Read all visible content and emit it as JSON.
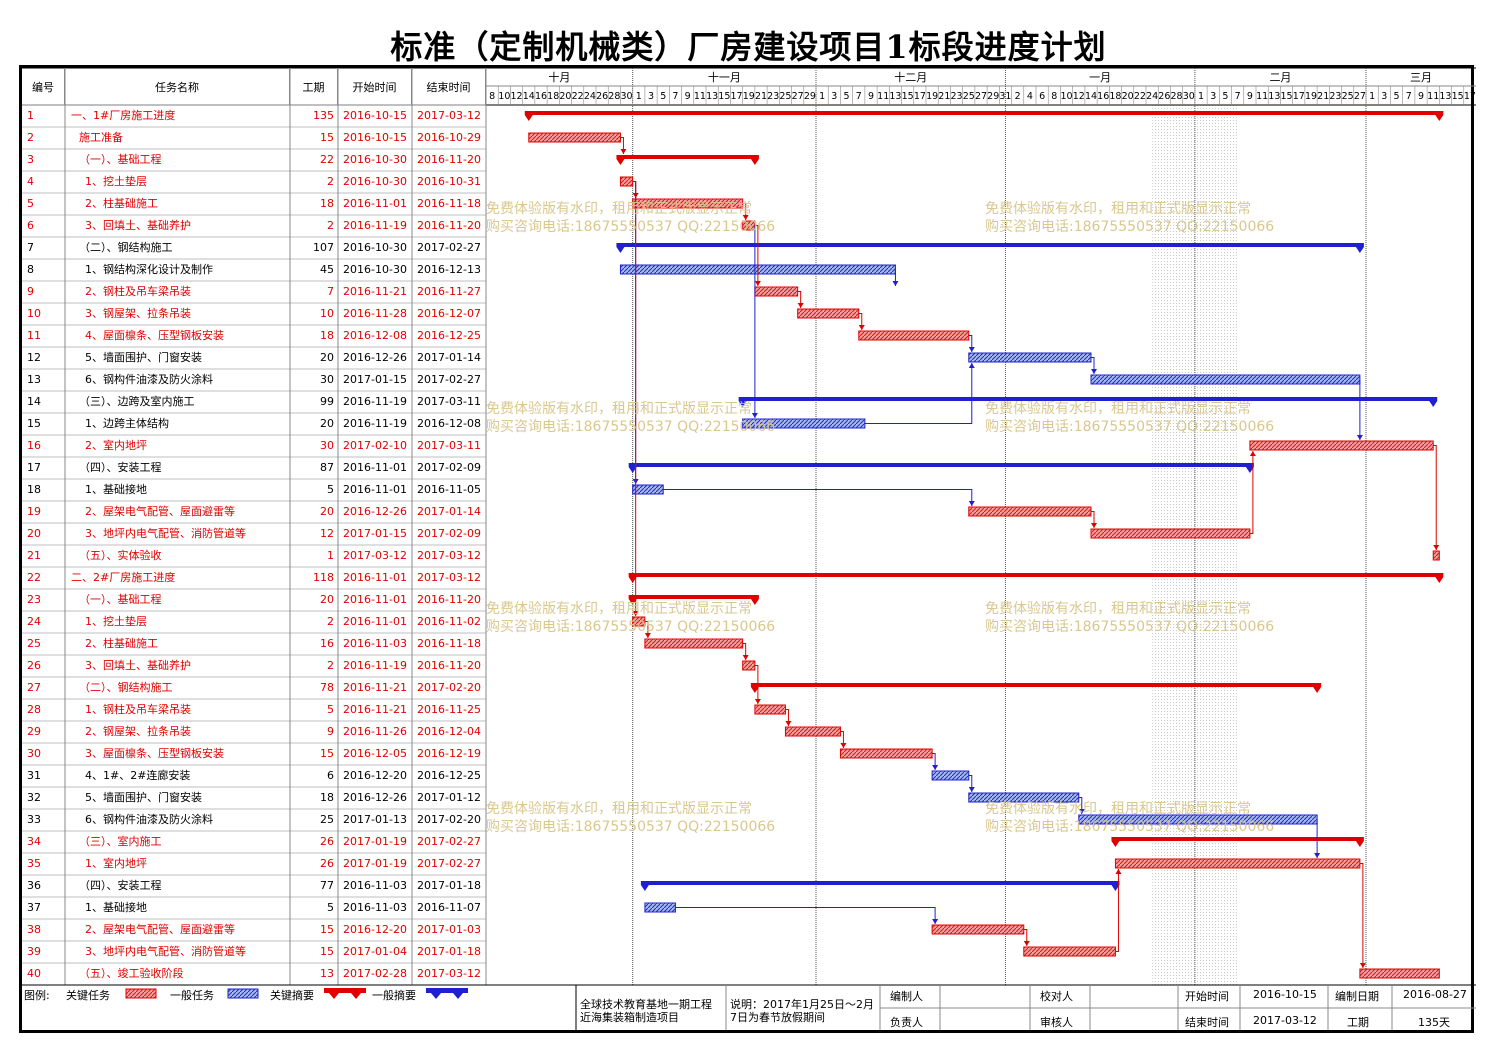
{
  "title": "标准（定制机械类）厂房建设项目1标段进度计划",
  "headers": {
    "id": "编号",
    "name": "任务名称",
    "duration": "工期",
    "start": "开始时间",
    "end": "结束时间"
  },
  "months": [
    "十月",
    "十一月",
    "十二月",
    "一月",
    "二月",
    "三月"
  ],
  "day_ticks": [
    "8",
    "10",
    "12",
    "14",
    "16",
    "18",
    "20",
    "22",
    "24",
    "26",
    "28",
    "30",
    "1",
    "3",
    "5",
    "7",
    "9",
    "11",
    "13",
    "15",
    "17",
    "19",
    "21",
    "23",
    "25",
    "27",
    "29",
    "1",
    "3",
    "5",
    "7",
    "9",
    "11",
    "13",
    "15",
    "17",
    "19",
    "21",
    "23",
    "25",
    "27",
    "29",
    "31",
    "2",
    "4",
    "6",
    "8",
    "10",
    "12",
    "14",
    "16",
    "18",
    "20",
    "22",
    "24",
    "26",
    "28",
    "30",
    "1",
    "3",
    "5",
    "7",
    "9",
    "11",
    "13",
    "15",
    "17",
    "19",
    "21",
    "23",
    "25",
    "27",
    "1",
    "3",
    "5",
    "7",
    "9",
    "11",
    "13",
    "15",
    "17"
  ],
  "watermark": {
    "line1": "免费体验版有水印，租用和正式版显示正常",
    "line2": "购买咨询电话:18675550537 QQ:22150066"
  },
  "chart_data": {
    "type": "gantt",
    "axis_start": "2016-10-08",
    "axis_end": "2017-03-18",
    "holiday": [
      "2017-01-25",
      "2017-02-07"
    ],
    "tasks": [
      {
        "id": "1",
        "name": "一、1#厂房施工进度",
        "duration": "135",
        "start": "2016-10-15",
        "end": "2017-03-12",
        "kind": "critical-summary",
        "indent": 0
      },
      {
        "id": "2",
        "name": "施工准备",
        "duration": "15",
        "start": "2016-10-15",
        "end": "2016-10-29",
        "kind": "critical",
        "indent": 1
      },
      {
        "id": "3",
        "name": "（一）、基础工程",
        "duration": "22",
        "start": "2016-10-30",
        "end": "2016-11-20",
        "kind": "critical-summary",
        "indent": 1
      },
      {
        "id": "4",
        "name": "1、挖土垫层",
        "duration": "2",
        "start": "2016-10-30",
        "end": "2016-10-31",
        "kind": "critical",
        "indent": 2
      },
      {
        "id": "5",
        "name": "2、柱基础施工",
        "duration": "18",
        "start": "2016-11-01",
        "end": "2016-11-18",
        "kind": "critical",
        "indent": 2
      },
      {
        "id": "6",
        "name": "3、回填土、基础养护",
        "duration": "2",
        "start": "2016-11-19",
        "end": "2016-11-20",
        "kind": "critical",
        "indent": 2
      },
      {
        "id": "7",
        "name": "（二）、钢结构施工",
        "duration": "107",
        "start": "2016-10-30",
        "end": "2017-02-27",
        "kind": "summary",
        "indent": 1
      },
      {
        "id": "8",
        "name": "1、钢结构深化设计及制作",
        "duration": "45",
        "start": "2016-10-30",
        "end": "2016-12-13",
        "kind": "normal",
        "indent": 2
      },
      {
        "id": "9",
        "name": "2、钢柱及吊车梁吊装",
        "duration": "7",
        "start": "2016-11-21",
        "end": "2016-11-27",
        "kind": "critical",
        "indent": 2
      },
      {
        "id": "10",
        "name": "3、钢屋架、拉条吊装",
        "duration": "10",
        "start": "2016-11-28",
        "end": "2016-12-07",
        "kind": "critical",
        "indent": 2
      },
      {
        "id": "11",
        "name": "4、屋面檩条、压型钢板安装",
        "duration": "18",
        "start": "2016-12-08",
        "end": "2016-12-25",
        "kind": "critical",
        "indent": 2
      },
      {
        "id": "12",
        "name": "5、墙面围护、门窗安装",
        "duration": "20",
        "start": "2016-12-26",
        "end": "2017-01-14",
        "kind": "normal",
        "indent": 2
      },
      {
        "id": "13",
        "name": "6、钢构件油漆及防火涂料",
        "duration": "30",
        "start": "2017-01-15",
        "end": "2017-02-27",
        "kind": "normal",
        "indent": 2
      },
      {
        "id": "14",
        "name": "（三）、边跨及室内施工",
        "duration": "99",
        "start": "2016-11-19",
        "end": "2017-03-11",
        "kind": "summary",
        "indent": 1
      },
      {
        "id": "15",
        "name": "1、边跨主体结构",
        "duration": "20",
        "start": "2016-11-19",
        "end": "2016-12-08",
        "kind": "normal",
        "indent": 2
      },
      {
        "id": "16",
        "name": "2、室内地坪",
        "duration": "30",
        "start": "2017-02-10",
        "end": "2017-03-11",
        "kind": "critical",
        "indent": 2
      },
      {
        "id": "17",
        "name": "（四）、安装工程",
        "duration": "87",
        "start": "2016-11-01",
        "end": "2017-02-09",
        "kind": "summary",
        "indent": 1
      },
      {
        "id": "18",
        "name": "1、基础接地",
        "duration": "5",
        "start": "2016-11-01",
        "end": "2016-11-05",
        "kind": "normal",
        "indent": 2
      },
      {
        "id": "19",
        "name": "2、屋架电气配管、屋面避雷等",
        "duration": "20",
        "start": "2016-12-26",
        "end": "2017-01-14",
        "kind": "critical",
        "indent": 2
      },
      {
        "id": "20",
        "name": "3、地坪内电气配管、消防管道等",
        "duration": "12",
        "start": "2017-01-15",
        "end": "2017-02-09",
        "kind": "critical",
        "indent": 2
      },
      {
        "id": "21",
        "name": "（五）、实体验收",
        "duration": "1",
        "start": "2017-03-12",
        "end": "2017-03-12",
        "kind": "critical",
        "indent": 1
      },
      {
        "id": "22",
        "name": "二、2#厂房施工进度",
        "duration": "118",
        "start": "2016-11-01",
        "end": "2017-03-12",
        "kind": "critical-summary",
        "indent": 0
      },
      {
        "id": "23",
        "name": "（一）、基础工程",
        "duration": "20",
        "start": "2016-11-01",
        "end": "2016-11-20",
        "kind": "critical-summary",
        "indent": 1
      },
      {
        "id": "24",
        "name": "1、挖土垫层",
        "duration": "2",
        "start": "2016-11-01",
        "end": "2016-11-02",
        "kind": "critical",
        "indent": 2
      },
      {
        "id": "25",
        "name": "2、柱基础施工",
        "duration": "16",
        "start": "2016-11-03",
        "end": "2016-11-18",
        "kind": "critical",
        "indent": 2
      },
      {
        "id": "26",
        "name": "3、回填土、基础养护",
        "duration": "2",
        "start": "2016-11-19",
        "end": "2016-11-20",
        "kind": "critical",
        "indent": 2
      },
      {
        "id": "27",
        "name": "（二）、钢结构施工",
        "duration": "78",
        "start": "2016-11-21",
        "end": "2017-02-20",
        "kind": "critical-summary",
        "indent": 1
      },
      {
        "id": "28",
        "name": "1、钢柱及吊车梁吊装",
        "duration": "5",
        "start": "2016-11-21",
        "end": "2016-11-25",
        "kind": "critical",
        "indent": 2
      },
      {
        "id": "29",
        "name": "2、钢屋架、拉条吊装",
        "duration": "9",
        "start": "2016-11-26",
        "end": "2016-12-04",
        "kind": "critical",
        "indent": 2
      },
      {
        "id": "30",
        "name": "3、屋面檩条、压型钢板安装",
        "duration": "15",
        "start": "2016-12-05",
        "end": "2016-12-19",
        "kind": "critical",
        "indent": 2
      },
      {
        "id": "31",
        "name": "4、1#、2#连廊安装",
        "duration": "6",
        "start": "2016-12-20",
        "end": "2016-12-25",
        "kind": "normal",
        "indent": 2
      },
      {
        "id": "32",
        "name": "5、墙面围护、门窗安装",
        "duration": "18",
        "start": "2016-12-26",
        "end": "2017-01-12",
        "kind": "normal",
        "indent": 2
      },
      {
        "id": "33",
        "name": "6、钢构件油漆及防火涂料",
        "duration": "25",
        "start": "2017-01-13",
        "end": "2017-02-20",
        "kind": "normal",
        "indent": 2
      },
      {
        "id": "34",
        "name": "（三）、室内施工",
        "duration": "26",
        "start": "2017-01-19",
        "end": "2017-02-27",
        "kind": "critical-summary",
        "indent": 1
      },
      {
        "id": "35",
        "name": "1、室内地坪",
        "duration": "26",
        "start": "2017-01-19",
        "end": "2017-02-27",
        "kind": "critical",
        "indent": 2
      },
      {
        "id": "36",
        "name": "（四）、安装工程",
        "duration": "77",
        "start": "2016-11-03",
        "end": "2017-01-18",
        "kind": "summary",
        "indent": 1
      },
      {
        "id": "37",
        "name": "1、基础接地",
        "duration": "5",
        "start": "2016-11-03",
        "end": "2016-11-07",
        "kind": "normal",
        "indent": 2
      },
      {
        "id": "38",
        "name": "2、屋架电气配管、屋面避雷等",
        "duration": "15",
        "start": "2016-12-20",
        "end": "2017-01-03",
        "kind": "critical",
        "indent": 2
      },
      {
        "id": "39",
        "name": "3、地坪内电气配管、消防管道等",
        "duration": "15",
        "start": "2017-01-04",
        "end": "2017-01-18",
        "kind": "critical",
        "indent": 2
      },
      {
        "id": "40",
        "name": "（五）、竣工验收阶段",
        "duration": "13",
        "start": "2017-02-28",
        "end": "2017-03-12",
        "kind": "critical",
        "indent": 1
      }
    ],
    "links": [
      [
        2,
        3
      ],
      [
        4,
        5
      ],
      [
        5,
        6
      ],
      [
        6,
        9
      ],
      [
        8,
        9
      ],
      [
        9,
        10
      ],
      [
        10,
        11
      ],
      [
        11,
        12
      ],
      [
        12,
        13
      ],
      [
        13,
        16
      ],
      [
        6,
        15
      ],
      [
        15,
        12
      ],
      [
        18,
        19
      ],
      [
        19,
        20
      ],
      [
        20,
        16
      ],
      [
        16,
        21
      ],
      [
        24,
        25
      ],
      [
        25,
        26
      ],
      [
        26,
        28
      ],
      [
        28,
        29
      ],
      [
        29,
        30
      ],
      [
        30,
        31
      ],
      [
        31,
        32
      ],
      [
        32,
        33
      ],
      [
        33,
        35
      ],
      [
        37,
        38
      ],
      [
        38,
        39
      ],
      [
        39,
        35
      ],
      [
        35,
        40
      ],
      [
        4,
        18
      ],
      [
        4,
        24
      ]
    ],
    "colors": {
      "critical": "#e00000",
      "normal": "#2020d0"
    }
  },
  "legend": {
    "label": "图例:",
    "critical_task": "关键任务",
    "normal_task": "一般任务",
    "critical_summary": "关键摘要",
    "normal_summary": "一般摘要"
  },
  "footer": {
    "project_line1": "全球技术教育基地一期工程",
    "project_line2": "近海集装箱制造项目",
    "note_line1": "说明：2017年1月25日～2月",
    "note_line2": "7日为春节放假期间",
    "compiler_label": "编制人",
    "checker_label": "校对人",
    "responsible_label": "负责人",
    "reviewer_label": "审核人",
    "start_label": "开始时间",
    "start_value": "2016-10-15",
    "end_label": "结束时间",
    "end_value": "2017-03-12",
    "date_label": "编制日期",
    "date_value": "2016-08-27",
    "duration_label": "工期",
    "duration_value": "135天"
  }
}
